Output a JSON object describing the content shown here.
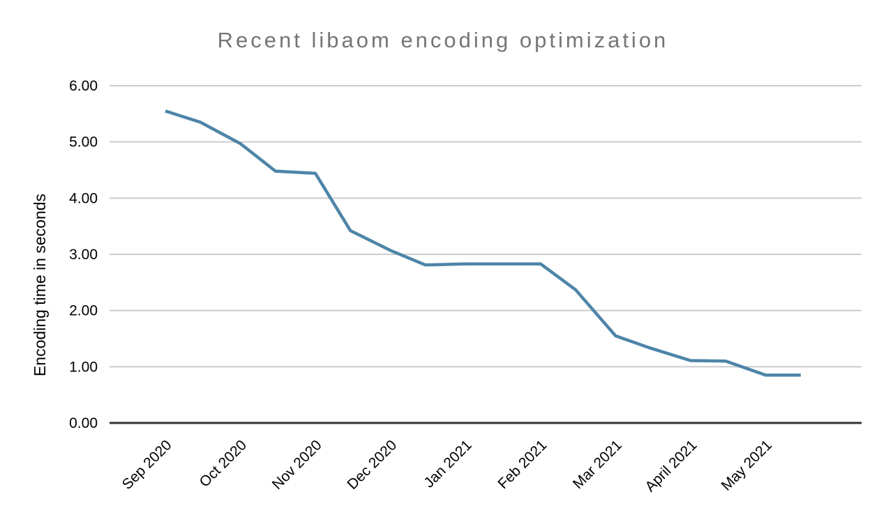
{
  "chart_data": {
    "type": "line",
    "title": "Recent libaom encoding optimization",
    "xlabel": "",
    "ylabel": "Encoding time in seconds",
    "ylim": [
      0,
      6
    ],
    "yticks": [
      0,
      1,
      2,
      3,
      4,
      5,
      6
    ],
    "ytick_labels": [
      "0.00",
      "1.00",
      "2.00",
      "3.00",
      "4.00",
      "5.00",
      "6.00"
    ],
    "grid": true,
    "legend_position": "none",
    "x_axis_type": "date",
    "x_tick_labels": [
      {
        "date": "2020-09-01",
        "label": "Sep 2020"
      },
      {
        "date": "2020-10-01",
        "label": "Oct 2020"
      },
      {
        "date": "2020-11-01",
        "label": "Nov 2020"
      },
      {
        "date": "2020-12-01",
        "label": "Dec 2020"
      },
      {
        "date": "2021-01-01",
        "label": "Jan 2021"
      },
      {
        "date": "2021-02-01",
        "label": "Feb 2021"
      },
      {
        "date": "2021-03-01",
        "label": "Mar 2021"
      },
      {
        "date": "2021-04-01",
        "label": "April 2021"
      },
      {
        "date": "2021-05-01",
        "label": "May 2021"
      }
    ],
    "series": [
      {
        "color": "#4d85a8",
        "points": [
          {
            "date": "2020-09-01",
            "value": 5.55
          },
          {
            "date": "2020-09-15",
            "value": 5.35
          },
          {
            "date": "2020-10-01",
            "value": 4.97
          },
          {
            "date": "2020-10-15",
            "value": 4.48
          },
          {
            "date": "2020-11-01",
            "value": 4.44
          },
          {
            "date": "2020-11-15",
            "value": 3.42
          },
          {
            "date": "2020-12-01",
            "value": 3.07
          },
          {
            "date": "2020-12-15",
            "value": 2.81
          },
          {
            "date": "2021-01-01",
            "value": 2.83
          },
          {
            "date": "2021-01-15",
            "value": 2.83
          },
          {
            "date": "2021-02-01",
            "value": 2.83
          },
          {
            "date": "2021-02-15",
            "value": 2.37
          },
          {
            "date": "2021-03-01",
            "value": 1.55
          },
          {
            "date": "2021-03-15",
            "value": 1.33
          },
          {
            "date": "2021-04-01",
            "value": 1.11
          },
          {
            "date": "2021-04-15",
            "value": 1.1
          },
          {
            "date": "2021-05-01",
            "value": 0.85
          },
          {
            "date": "2021-05-15",
            "value": 0.85
          }
        ]
      }
    ],
    "colors": {
      "title": "#757575",
      "axis_text": "#000000",
      "gridline": "#cccccc",
      "axis_line": "#333333",
      "line": "#4d85a8",
      "background": "#ffffff"
    }
  }
}
